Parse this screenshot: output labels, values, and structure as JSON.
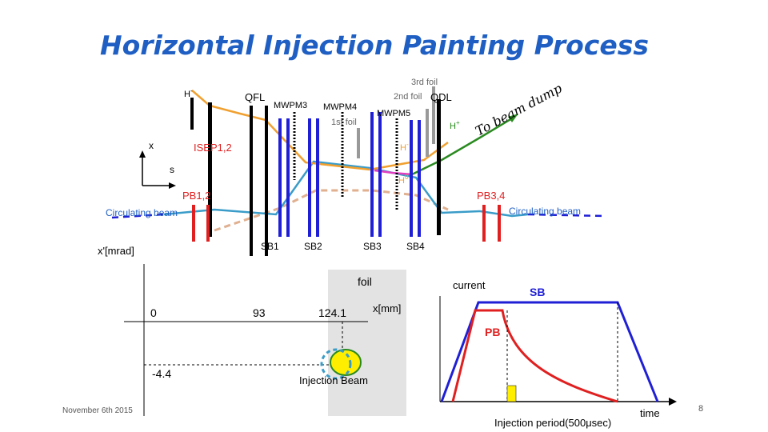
{
  "title": "Horizontal Injection Painting Process",
  "beamline": {
    "labels": {
      "h_minus_in": "H",
      "qfl": "QFL",
      "mwpm3": "MWPM3",
      "mwpm4": "MWPM4",
      "first_foil": "1st foil",
      "mwpm5": "MWPM5",
      "second_foil": "2nd foil",
      "third_foil": "3rd foil",
      "qdl": "QDL",
      "h_plus": "H",
      "to_beam_dump": "To beam dump",
      "h_minus_mid": "H",
      "h_zero": "H",
      "isep": "ISEP1,2",
      "pb12": "PB1,2",
      "pb34": "PB3,4",
      "circ_left": "Circulating beam",
      "circ_right": "Circulating beam",
      "sb1": "SB1",
      "sb2": "SB2",
      "sb3": "SB3",
      "sb4": "SB4"
    },
    "superscripts": {
      "minus": "-",
      "plus": "+",
      "zero": "0"
    },
    "axes": {
      "x": "x",
      "s": "s"
    },
    "colors": {
      "h_minus": "#f0a030",
      "circulating": "#3a9cc8",
      "h_plus": "#2a8a20",
      "h_zero": "#e040c0",
      "magnet": "#000000",
      "bump": "#1f1fd6",
      "pb": "#e02020",
      "dashed": "#e0b090"
    }
  },
  "phase_space": {
    "y_axis_label": "x'[mrad]",
    "x_axis_label": "x[mm]",
    "origin_label": "0",
    "tick_93": "93",
    "tick_124": "124.1",
    "y_tick": "-4.4",
    "foil_label": "foil",
    "injection_beam_label": "Injection Beam"
  },
  "timing": {
    "current_label": "current",
    "sb_label": "SB",
    "pb_label": "PB",
    "time_label": "time",
    "period_label": "Injection period(500μsec)",
    "colors": {
      "sb": "#1f1fd6",
      "pb": "#e02020",
      "marker": "#ffee00"
    }
  },
  "footer": {
    "date": "November 6th 2015",
    "page_number": "8"
  }
}
